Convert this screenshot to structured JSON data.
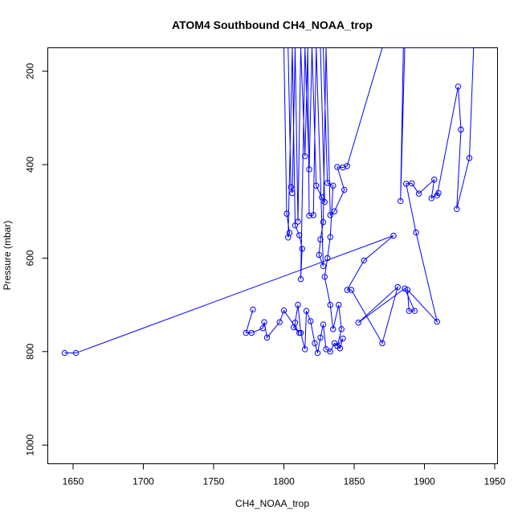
{
  "chart_data": {
    "type": "line",
    "title": "ATOM4 Southbound CH4_NOAA_trop",
    "xlabel": "CH4_NOAA_trop",
    "ylabel": "Pressure (mbar)",
    "xlim": [
      1632,
      1952
    ],
    "ylim": [
      1040,
      150
    ],
    "y_axis_inverted": true,
    "x_ticks": [
      1650,
      1700,
      1750,
      1800,
      1850,
      1900,
      1950
    ],
    "y_ticks": [
      200,
      400,
      600,
      800,
      1000
    ],
    "grid": false,
    "legend": "none",
    "colors": {
      "series": "#0000ff",
      "axes": "#000000",
      "background": "#ffffff"
    },
    "series": [
      {
        "style": "lines+points",
        "points": [
          [
            1644,
            803
          ],
          [
            1652,
            803
          ],
          [
            1878,
            552
          ],
          [
            1857,
            605
          ],
          [
            1845,
            668
          ],
          [
            1848,
            668
          ],
          [
            1870,
            782
          ],
          [
            1881,
            662
          ],
          [
            1853,
            738
          ],
          [
            1886,
            665
          ],
          [
            1893,
            713
          ],
          [
            1889,
            713
          ],
          [
            1888,
            668
          ],
          [
            1909,
            736
          ],
          [
            1894,
            545
          ],
          [
            1887,
            441
          ],
          [
            1891,
            440
          ],
          [
            1896,
            462
          ],
          [
            1907,
            432
          ],
          [
            1905,
            472
          ],
          [
            1910,
            461
          ],
          [
            1909,
            466
          ],
          [
            1924,
            233
          ],
          [
            1926,
            325
          ],
          [
            1923,
            495
          ],
          [
            1932,
            386
          ],
          [
            1935,
            150
          ],
          [
            1930,
            150
          ],
          [
            1920,
            150
          ],
          [
            1915,
            150
          ],
          [
            1903,
            150
          ],
          [
            1886,
            150
          ],
          [
            1883,
            478
          ],
          [
            1885,
            150
          ],
          [
            1870,
            150
          ],
          [
            1845,
            403
          ],
          [
            1842,
            406
          ],
          [
            1838,
            405
          ],
          [
            1843,
            454
          ],
          [
            1836,
            500
          ],
          [
            1833,
            508
          ],
          [
            1830,
            150
          ],
          [
            1828,
            523
          ],
          [
            1826,
            560
          ],
          [
            1825,
            593
          ],
          [
            1828,
            617
          ],
          [
            1823,
            150
          ],
          [
            1821,
            508
          ],
          [
            1818,
            509
          ],
          [
            1817,
            150
          ],
          [
            1815,
            382
          ],
          [
            1812,
            150
          ],
          [
            1810,
            522
          ],
          [
            1808,
            150
          ],
          [
            1806,
            461
          ],
          [
            1805,
            448
          ],
          [
            1803,
            150
          ],
          [
            1801,
            150
          ],
          [
            1800,
            150
          ],
          [
            1802,
            505
          ],
          [
            1804,
            546
          ],
          [
            1803,
            556
          ],
          [
            1806,
            150
          ],
          [
            1808,
            530
          ],
          [
            1811,
            551
          ],
          [
            1813,
            580
          ],
          [
            1812,
            645
          ],
          [
            1815,
            150
          ],
          [
            1818,
            410
          ],
          [
            1820,
            150
          ],
          [
            1823,
            445
          ],
          [
            1827,
            470
          ],
          [
            1829,
            480
          ],
          [
            1826,
            150
          ],
          [
            1828,
            150
          ],
          [
            1831,
            439
          ],
          [
            1835,
            445
          ],
          [
            1833,
            555
          ],
          [
            1831,
            600
          ],
          [
            1829,
            640
          ],
          [
            1833,
            700
          ],
          [
            1835,
            752
          ],
          [
            1839,
            700
          ],
          [
            1841,
            752
          ],
          [
            1838,
            788
          ],
          [
            1842,
            772
          ],
          [
            1840,
            793
          ],
          [
            1836,
            782
          ],
          [
            1833,
            800
          ],
          [
            1830,
            795
          ],
          [
            1828,
            742
          ],
          [
            1826,
            770
          ],
          [
            1824,
            803
          ],
          [
            1822,
            782
          ],
          [
            1819,
            735
          ],
          [
            1816,
            713
          ],
          [
            1815,
            795
          ],
          [
            1812,
            760
          ],
          [
            1810,
            700
          ],
          [
            1808,
            738
          ],
          [
            1807,
            748
          ],
          [
            1811,
            760
          ],
          [
            1800,
            712
          ],
          [
            1797,
            737
          ],
          [
            1788,
            770
          ],
          [
            1786,
            737
          ],
          [
            1785,
            750
          ],
          [
            1777,
            760
          ],
          [
            1773,
            760
          ],
          [
            1778,
            710
          ]
        ]
      }
    ]
  }
}
